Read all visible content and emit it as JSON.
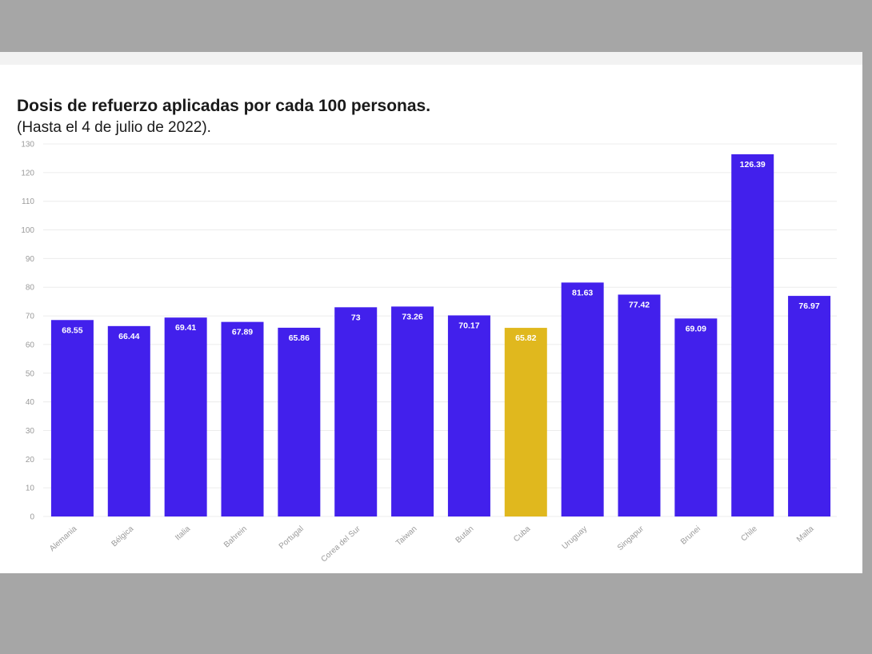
{
  "chart_data": {
    "type": "bar",
    "title": "Dosis de refuerzo aplicadas por cada 100 personas.",
    "subtitle": "(Hasta el 4 de julio de 2022).",
    "xlabel": "",
    "ylabel": "",
    "ylim": [
      0,
      130
    ],
    "yticks": [
      0,
      10,
      20,
      30,
      40,
      50,
      60,
      70,
      80,
      90,
      100,
      110,
      120,
      130
    ],
    "grid": true,
    "categories": [
      "Alemania",
      "Bélgica",
      "Italia",
      "Bahrein",
      "Portugal",
      "Corea del Sur",
      "Taiwan",
      "Bután",
      "Cuba",
      "Uruguay",
      "Singapur",
      "Brunei",
      "Chile",
      "Malta"
    ],
    "values": [
      68.55,
      66.44,
      69.41,
      67.89,
      65.86,
      73,
      73.26,
      70.17,
      65.82,
      81.63,
      77.42,
      69.09,
      126.39,
      76.97
    ],
    "value_labels": [
      "68.55",
      "66.44",
      "69.41",
      "67.89",
      "65.86",
      "73",
      "73.26",
      "70.17",
      "65.82",
      "81.63",
      "77.42",
      "69.09",
      "126.39",
      "76.97"
    ],
    "colors": {
      "default": "#4220ec",
      "highlight": "#e0b81e",
      "highlight_category": "Cuba"
    }
  }
}
